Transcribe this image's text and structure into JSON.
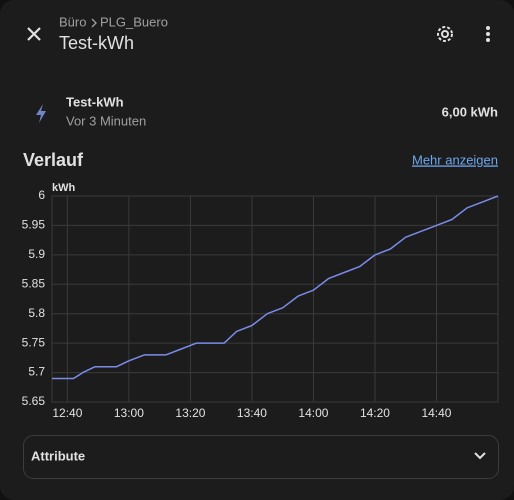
{
  "header": {
    "breadcrumb": [
      "Büro",
      "PLG_Buero"
    ],
    "title": "Test-kWh"
  },
  "entity": {
    "name": "Test-kWh",
    "last_changed": "Vor 3 Minuten",
    "state": "6,00 kWh"
  },
  "history": {
    "title": "Verlauf",
    "link": "Mehr anzeigen"
  },
  "attributes": {
    "title": "Attribute"
  },
  "chart_data": {
    "type": "line",
    "y_label": "kWh",
    "x": [
      755,
      762,
      765,
      769,
      776,
      780,
      785,
      792,
      797,
      802,
      811,
      815,
      820,
      825,
      830,
      835,
      840,
      845,
      850,
      855,
      860,
      865,
      870,
      875,
      880,
      885,
      890,
      895,
      900
    ],
    "values": [
      5.69,
      5.69,
      5.7,
      5.71,
      5.71,
      5.72,
      5.73,
      5.73,
      5.74,
      5.75,
      5.75,
      5.77,
      5.78,
      5.8,
      5.81,
      5.83,
      5.84,
      5.86,
      5.87,
      5.88,
      5.9,
      5.91,
      5.93,
      5.94,
      5.95,
      5.96,
      5.98,
      5.99,
      6.0
    ],
    "color": "#7b8ce8",
    "xlim": [
      755,
      900
    ],
    "xticks": [
      {
        "value": 760,
        "label": "12:40"
      },
      {
        "value": 780,
        "label": "13:00"
      },
      {
        "value": 800,
        "label": "13:20"
      },
      {
        "value": 820,
        "label": "13:40"
      },
      {
        "value": 840,
        "label": "14:00"
      },
      {
        "value": 860,
        "label": "14:20"
      },
      {
        "value": 880,
        "label": "14:40"
      }
    ],
    "ylim": [
      5.65,
      6
    ],
    "yticks": [
      5.65,
      5.7,
      5.75,
      5.8,
      5.85,
      5.9,
      5.95,
      6
    ],
    "grid": true
  }
}
